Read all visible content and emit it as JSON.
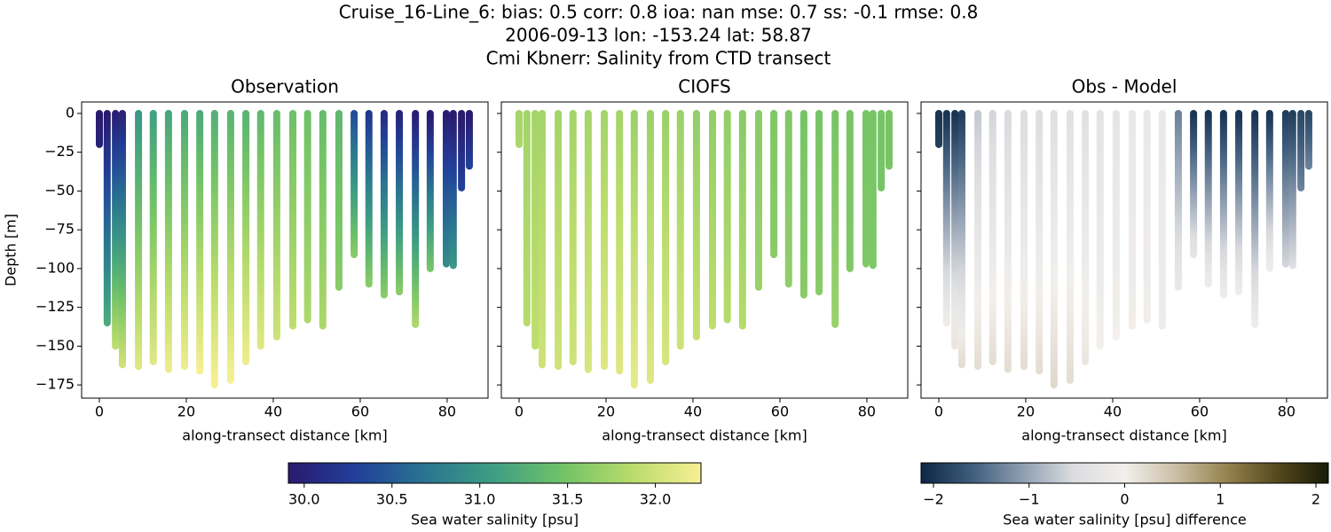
{
  "chart_data": {
    "type": "transect",
    "title_lines": [
      "Cruise_16-Line_6: bias: 0.5  corr: 0.8  ioa: nan  mse: 0.7  ss: -0.1  rmse: 0.8",
      "2006-09-13 lon: -153.24 lat: 58.87",
      "Cmi Kbnerr: Salinity from CTD transect"
    ],
    "ylabel": "Depth [m]",
    "xlabel": "along-transect distance [km]",
    "xlim": [
      -4.08,
      89.4
    ],
    "ylim": [
      7.4,
      -183.5
    ],
    "xticks": [
      0,
      20,
      40,
      60,
      80
    ],
    "yticks": [
      0,
      {
        "value": -25,
        "label": "−25"
      },
      {
        "value": -50,
        "label": "−50"
      },
      {
        "value": -75,
        "label": "−75"
      },
      {
        "value": -100,
        "label": "−100"
      },
      {
        "value": -125,
        "label": "−125"
      },
      {
        "value": -150,
        "label": "−150"
      },
      {
        "value": -175,
        "label": "−175"
      }
    ],
    "x": [
      0,
      1.8,
      3.7,
      5.3,
      9,
      12.4,
      15.9,
      19.6,
      23.1,
      26.5,
      30.2,
      33.7,
      37.1,
      40.8,
      44.5,
      47.9,
      51.4,
      55.1,
      58.6,
      62,
      65.5,
      69,
      72.7,
      76.1,
      79.8,
      81.4,
      83.3,
      85.1
    ],
    "depth": [
      -20,
      -135,
      -150,
      -162,
      -163,
      -160,
      -165,
      -163,
      -166,
      -175,
      -172,
      -160,
      -150,
      -144,
      -137,
      -133,
      -137,
      -112,
      -91,
      -110,
      -117,
      -115,
      -136,
      -100,
      -97,
      -98,
      -48,
      -34
    ],
    "panels": [
      {
        "title": "Observation",
        "colorbar": 0,
        "top": [
          29.9,
          29.9,
          29.95,
          30.0,
          31.0,
          31.1,
          31.15,
          31.2,
          31.2,
          31.25,
          31.3,
          31.3,
          31.35,
          31.4,
          31.45,
          31.45,
          31.4,
          31.35,
          30.4,
          30.2,
          30.1,
          30.0,
          29.95,
          29.9,
          29.95,
          29.9,
          29.9,
          29.9
        ],
        "bottom": [
          30.0,
          31.2,
          31.9,
          32.0,
          32.1,
          32.1,
          32.2,
          32.2,
          32.25,
          32.26,
          32.25,
          32.2,
          32.1,
          32.0,
          31.9,
          31.8,
          31.8,
          31.6,
          31.6,
          31.6,
          31.6,
          31.6,
          31.8,
          31.5,
          30.9,
          31.0,
          30.3,
          30.3
        ]
      },
      {
        "title": "CIOFS",
        "colorbar": 0,
        "top": [
          31.75,
          31.75,
          31.75,
          31.75,
          31.75,
          31.75,
          31.75,
          31.75,
          31.75,
          31.7,
          31.7,
          31.7,
          31.7,
          31.65,
          31.65,
          31.65,
          31.6,
          31.6,
          31.55,
          31.55,
          31.5,
          31.5,
          31.5,
          31.5,
          31.5,
          31.5,
          31.5,
          31.5
        ],
        "bottom": [
          31.8,
          31.85,
          31.9,
          32.0,
          32.0,
          32.0,
          32.05,
          32.1,
          32.1,
          32.15,
          32.1,
          32.05,
          32.0,
          31.95,
          31.9,
          31.85,
          31.85,
          31.7,
          31.6,
          31.65,
          31.6,
          31.6,
          31.7,
          31.55,
          31.55,
          31.55,
          31.5,
          31.5
        ]
      },
      {
        "title": "Obs - Model",
        "colorbar": 1,
        "top": [
          -2,
          -2,
          -2,
          -1.9,
          -0.7,
          -0.6,
          -0.55,
          -0.5,
          -0.5,
          -0.45,
          -0.4,
          -0.4,
          -0.35,
          -0.3,
          -0.2,
          -0.2,
          -0.2,
          -1.3,
          -2,
          -2,
          -2,
          -2,
          -2,
          -2,
          -1.9,
          -1.9,
          -1.8,
          -1.8
        ],
        "bottom": [
          -1.9,
          -0.1,
          0.1,
          0.2,
          0.2,
          0.2,
          0.2,
          0.2,
          0.2,
          0.25,
          0.2,
          0.1,
          0.0,
          0.0,
          -0.05,
          -0.05,
          -0.1,
          -0.2,
          -0.3,
          -0.1,
          -0.1,
          -0.1,
          -0.1,
          -0.1,
          -0.6,
          -0.5,
          -1.3,
          -1.3
        ]
      }
    ],
    "colorbars": [
      {
        "label": "Sea water salinity [psu]",
        "lim": [
          29.91,
          32.26
        ],
        "ticks": [
          {
            "value": 30,
            "label": "30.0"
          },
          30.5,
          {
            "value": 31,
            "label": "31.0"
          },
          31.5,
          {
            "value": 32,
            "label": "32.0"
          }
        ],
        "colors": [
          "#2a1a6e",
          "#21409a",
          "#2a7590",
          "#3e9f83",
          "#72c366",
          "#b9dc6c",
          "#f8ef94"
        ]
      },
      {
        "label": "Sea water salinity [psu] difference",
        "lim": [
          -2.13,
          2.13
        ],
        "ticks": [
          {
            "value": -2,
            "label": "−2"
          },
          {
            "value": -1,
            "label": "−1"
          },
          0,
          1,
          2
        ],
        "colors": [
          "#0b2744",
          "#3f5d7c",
          "#8f9eb1",
          "#dcdde0",
          "#f2efec",
          "#cbbfa6",
          "#96834f",
          "#55491c",
          "#161a06"
        ]
      }
    ]
  }
}
